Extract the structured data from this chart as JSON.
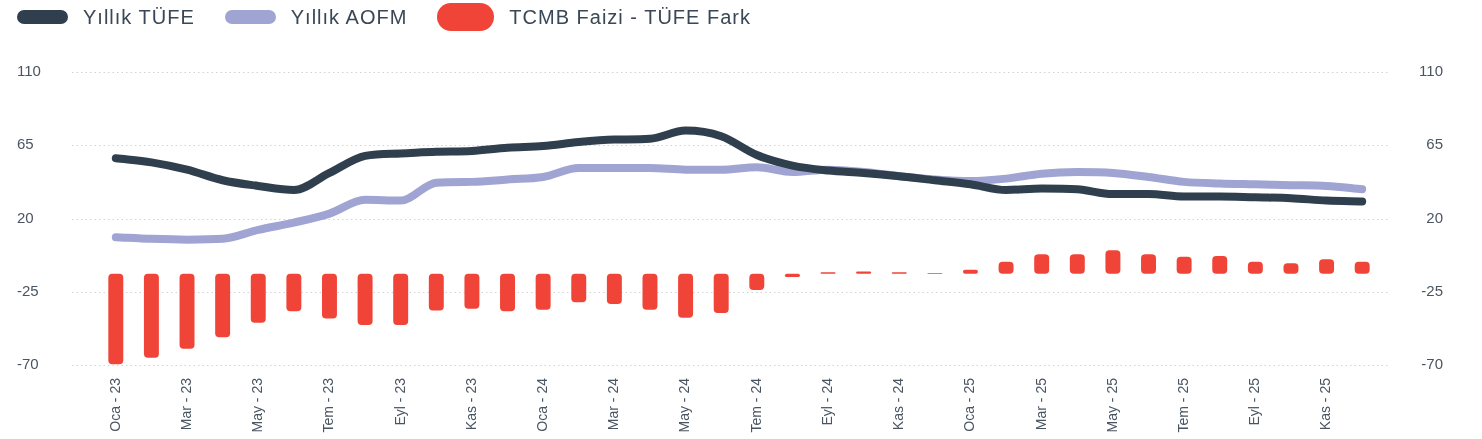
{
  "chart_data": {
    "type": "line",
    "categories": [
      "Oca - 23",
      null,
      "Mar - 23",
      null,
      "May - 23",
      null,
      "Tem - 23",
      null,
      "Eyl - 23",
      null,
      "Kas - 23",
      null,
      "Oca - 24",
      null,
      "Mar - 24",
      null,
      "May - 24",
      null,
      "Tem - 24",
      null,
      "Eyl - 24",
      null,
      "Kas - 24",
      null,
      "Oca - 25",
      null,
      "Mar - 25",
      null,
      "May - 25",
      null,
      "Tem - 25",
      null,
      "Eyl - 25",
      null,
      "Kas - 25",
      null
    ],
    "series": [
      {
        "name": "Yıllık TÜFE",
        "color": "#2f3f4d",
        "values": [
          57,
          54.5,
          50,
          43.5,
          40,
          37.5,
          48,
          58.5,
          60,
          61,
          61.5,
          63.5,
          64.5,
          67,
          68.5,
          69,
          74,
          70.5,
          59,
          52.5,
          49.5,
          48,
          46,
          43.5,
          41,
          37.5,
          38.5,
          38,
          35,
          35,
          33.5,
          33.5,
          33,
          32.5,
          31,
          30.5
        ]
      },
      {
        "name": "Yıllık AOFM",
        "color": "#9fa4d2",
        "values": [
          8.5,
          7.5,
          7,
          7.5,
          13,
          17.5,
          23,
          31.5,
          31,
          42,
          42.5,
          44,
          45.5,
          51,
          51,
          51,
          50,
          50,
          51.5,
          48.5,
          50,
          48.5,
          46,
          44,
          43,
          44.5,
          47.5,
          48.5,
          48,
          45.5,
          42.5,
          41.5,
          41,
          40.5,
          40,
          38
        ]
      },
      {
        "name": "TCMB Faizi - TÜFE Fark",
        "type": "bar",
        "color": "#f04438",
        "values": [
          -55.5,
          -51.5,
          -46,
          -39,
          -30,
          -23,
          -27.5,
          -31.5,
          -31.5,
          -22.5,
          -21.5,
          -23,
          -22,
          -17.5,
          -18.5,
          -22,
          -27,
          -24,
          -10,
          -2,
          1,
          1.5,
          1,
          0.5,
          2.5,
          7.5,
          12,
          12,
          14.5,
          12,
          10.5,
          11,
          7.5,
          6.5,
          9,
          7.5
        ],
        "base": [
          -14,
          -14,
          -14,
          -14,
          -14,
          -14,
          -14,
          -14,
          -14,
          -14,
          -14,
          -14,
          -14,
          -14,
          -14,
          -14,
          -14,
          -14,
          -14,
          -14,
          -14,
          -14,
          -14,
          -14,
          -14,
          -14,
          -14,
          -14,
          -14,
          -14,
          -14,
          -14,
          -14,
          -14,
          -14,
          -14
        ]
      }
    ],
    "ylim": [
      -70,
      110
    ],
    "yticks": [
      -70,
      -25,
      20,
      65,
      110
    ],
    "y2lim": [
      -70,
      110
    ],
    "y2ticks": [
      -70,
      -25,
      20,
      65,
      110
    ],
    "grid": "y",
    "legend": "top left",
    "marker": "none"
  }
}
